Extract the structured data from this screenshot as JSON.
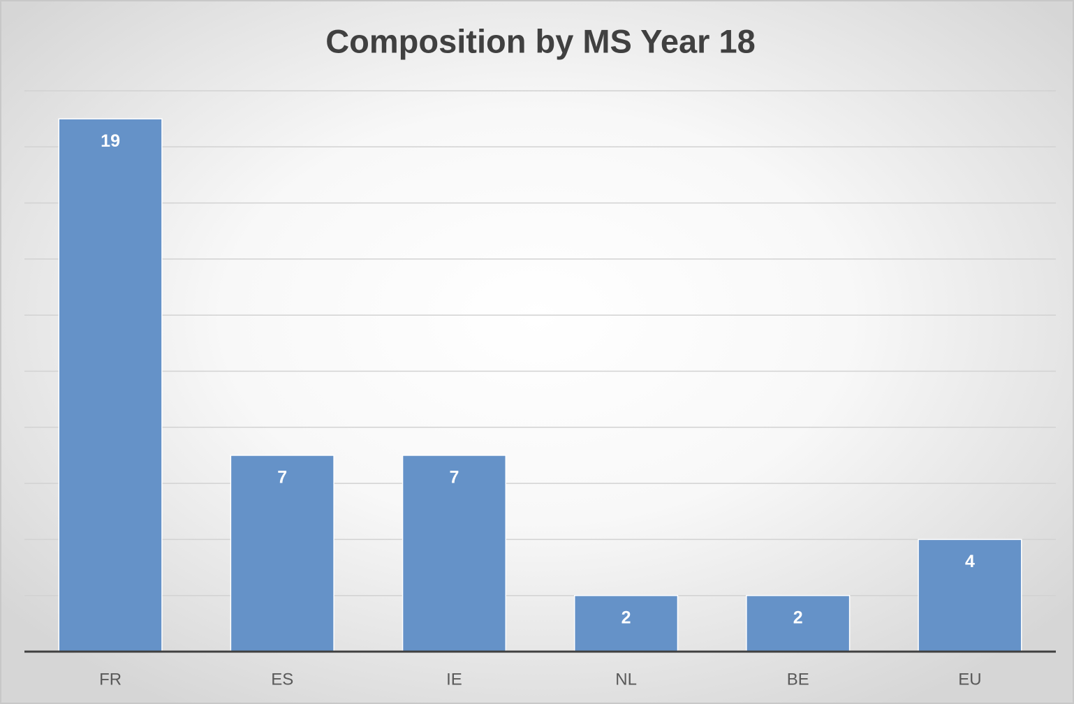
{
  "chart_data": {
    "type": "bar",
    "title": "Composition by MS Year 18",
    "categories": [
      "FR",
      "ES",
      "IE",
      "NL",
      "BE",
      "EU"
    ],
    "values": [
      19,
      7,
      7,
      2,
      2,
      4
    ],
    "color": "#6592c8",
    "ylim": [
      0,
      20
    ],
    "yticks": [
      0,
      2,
      4,
      6,
      8,
      10,
      12,
      14,
      16,
      18,
      20
    ],
    "grid": true
  }
}
